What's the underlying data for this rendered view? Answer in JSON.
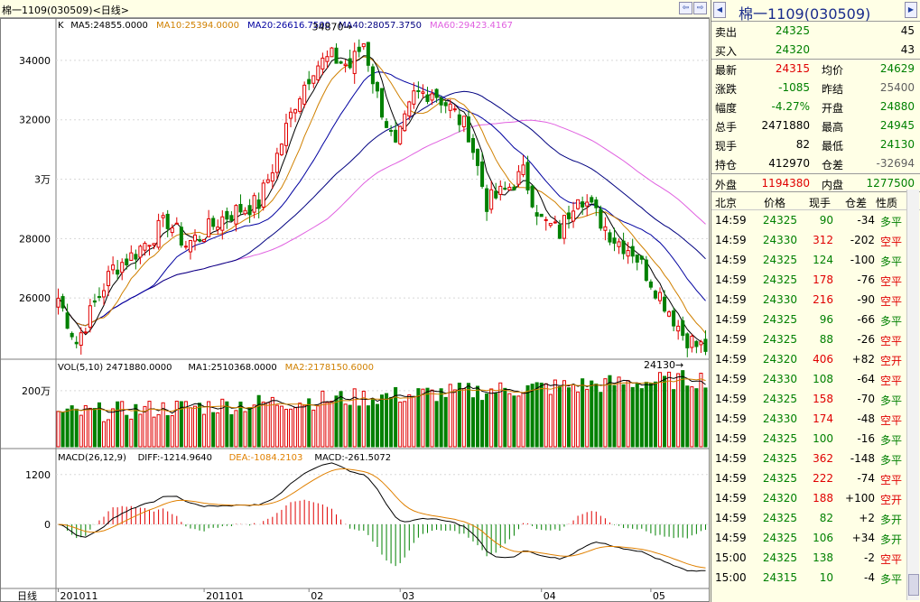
{
  "window": {
    "title": "棉一1109(030509)<日线>"
  },
  "toolbar": {
    "prev_label": "⇦",
    "next_label": "⇨",
    "close_label": "×"
  },
  "chart": {
    "k_legend": [
      "K",
      "MA5:24855.0000",
      "MA10:25394.0000",
      "MA20:26616.7500",
      "MA40:28057.3750",
      "MA60:29423.4167"
    ],
    "vol_legend": [
      "VOL(5,10) 2471880.0000",
      "MA1:2510368.0000",
      "MA2:2178150.6000"
    ],
    "macd_legend": [
      "MACD(26,12,9)",
      "DIFF:-1214.9640",
      "DEA:-1084.2103",
      "MACD:-261.5072"
    ],
    "colors": {
      "up": "#e00000",
      "down": "#008000",
      "ma5": "#000000",
      "ma10": "#d08000",
      "ma20": "#0000a0",
      "ma40": "#000080",
      "ma60": "#e060e0",
      "diff": "#000000",
      "dea": "#e08000"
    },
    "high_label": "34870",
    "low_label": "24130",
    "axis_bottom_label": "日线",
    "price_ticks": [
      {
        "value": 34000,
        "label": "34000"
      },
      {
        "value": 32000,
        "label": "32000"
      },
      {
        "value": 30000,
        "label": "3万"
      },
      {
        "value": 28000,
        "label": "28000"
      },
      {
        "value": 26000,
        "label": "26000"
      }
    ],
    "vol_ticks": [
      {
        "value": 2000000,
        "label": "200万"
      }
    ],
    "macd_ticks": [
      {
        "value": 1200,
        "label": "1200"
      },
      {
        "value": 0,
        "label": "0"
      }
    ],
    "date_ticks": [
      {
        "index": 0,
        "label": "201011"
      },
      {
        "index": 32,
        "label": "201101"
      },
      {
        "index": 55,
        "label": "02"
      },
      {
        "index": 75,
        "label": "03"
      },
      {
        "index": 106,
        "label": "04"
      },
      {
        "index": 130,
        "label": "05"
      }
    ]
  },
  "quote": {
    "name": "棉一1109(030509)",
    "sell": {
      "label": "卖出",
      "price": "24325",
      "qty": "45"
    },
    "buy": {
      "label": "买入",
      "price": "24320",
      "qty": "43"
    },
    "rows": [
      {
        "l1": "最新",
        "v1": "24315",
        "c1": "red",
        "l2": "均价",
        "v2": "24629",
        "c2": "green"
      },
      {
        "l1": "涨跌",
        "v1": "-1085",
        "c1": "green",
        "l2": "昨结",
        "v2": "25400",
        "c2": "gray"
      },
      {
        "l1": "幅度",
        "v1": "-4.27%",
        "c1": "green",
        "l2": "开盘",
        "v2": "24880",
        "c2": "green"
      },
      {
        "l1": "总手",
        "v1": "2471880",
        "c1": "black",
        "l2": "最高",
        "v2": "24945",
        "c2": "green"
      },
      {
        "l1": "现手",
        "v1": "82",
        "c1": "black",
        "l2": "最低",
        "v2": "24130",
        "c2": "green"
      },
      {
        "l1": "持仓",
        "v1": "412970",
        "c1": "black",
        "l2": "仓差",
        "v2": "-32694",
        "c2": "gray"
      }
    ],
    "outer": {
      "label": "外盘",
      "value": "1194380"
    },
    "inner": {
      "label": "内盘",
      "value": "1277500"
    }
  },
  "trades_header": {
    "place": "北京",
    "price": "价格",
    "vol": "现手",
    "oi": "仓差",
    "type": "性质"
  },
  "trades": [
    {
      "time": "14:59",
      "price": "24325",
      "vol": "90",
      "oi": "-34",
      "type": "多平"
    },
    {
      "time": "14:59",
      "price": "24330",
      "vol": "312",
      "oi": "-202",
      "type": "空平"
    },
    {
      "time": "14:59",
      "price": "24325",
      "vol": "124",
      "oi": "-100",
      "type": "多平"
    },
    {
      "time": "14:59",
      "price": "24325",
      "vol": "178",
      "oi": "-76",
      "type": "空平"
    },
    {
      "time": "14:59",
      "price": "24330",
      "vol": "216",
      "oi": "-90",
      "type": "空平"
    },
    {
      "time": "14:59",
      "price": "24325",
      "vol": "96",
      "oi": "-66",
      "type": "多平"
    },
    {
      "time": "14:59",
      "price": "24325",
      "vol": "88",
      "oi": "-26",
      "type": "空平"
    },
    {
      "time": "14:59",
      "price": "24320",
      "vol": "406",
      "oi": "+82",
      "type": "空开"
    },
    {
      "time": "14:59",
      "price": "24330",
      "vol": "108",
      "oi": "-64",
      "type": "空平"
    },
    {
      "time": "14:59",
      "price": "24325",
      "vol": "158",
      "oi": "-70",
      "type": "多平"
    },
    {
      "time": "14:59",
      "price": "24330",
      "vol": "174",
      "oi": "-48",
      "type": "空平"
    },
    {
      "time": "14:59",
      "price": "24325",
      "vol": "100",
      "oi": "-16",
      "type": "多平"
    },
    {
      "time": "14:59",
      "price": "24325",
      "vol": "362",
      "oi": "-148",
      "type": "多平"
    },
    {
      "time": "14:59",
      "price": "24325",
      "vol": "222",
      "oi": "-74",
      "type": "空平"
    },
    {
      "time": "14:59",
      "price": "24320",
      "vol": "188",
      "oi": "+100",
      "type": "空开"
    },
    {
      "time": "14:59",
      "price": "24325",
      "vol": "82",
      "oi": "+2",
      "type": "多开"
    },
    {
      "time": "14:59",
      "price": "24325",
      "vol": "106",
      "oi": "+34",
      "type": "多开"
    },
    {
      "time": "15:00",
      "price": "24325",
      "vol": "138",
      "oi": "-2",
      "type": "空平"
    },
    {
      "time": "15:00",
      "price": "24315",
      "vol": "10",
      "oi": "-4",
      "type": "多平"
    }
  ],
  "chart_data": {
    "type": "candlestick",
    "price_range": [
      24000,
      35000
    ],
    "vol_range": [
      0,
      2800000
    ],
    "macd_range": [
      -1500,
      1500
    ],
    "anchors": [
      [
        0,
        26000
      ],
      [
        4,
        24500
      ],
      [
        8,
        25800
      ],
      [
        12,
        27000
      ],
      [
        16,
        27400
      ],
      [
        20,
        28000
      ],
      [
        24,
        28600
      ],
      [
        28,
        27800
      ],
      [
        32,
        28200
      ],
      [
        36,
        28700
      ],
      [
        40,
        29000
      ],
      [
        44,
        29200
      ],
      [
        48,
        30800
      ],
      [
        52,
        32600
      ],
      [
        56,
        33800
      ],
      [
        60,
        34100
      ],
      [
        64,
        33800
      ],
      [
        67,
        34600
      ],
      [
        70,
        32800
      ],
      [
        74,
        31000
      ],
      [
        78,
        32800
      ],
      [
        82,
        33000
      ],
      [
        86,
        32400
      ],
      [
        90,
        31600
      ],
      [
        94,
        29200
      ],
      [
        98,
        29600
      ],
      [
        102,
        30200
      ],
      [
        106,
        28600
      ],
      [
        110,
        28200
      ],
      [
        114,
        29600
      ],
      [
        118,
        28800
      ],
      [
        122,
        28000
      ],
      [
        126,
        27600
      ],
      [
        130,
        26600
      ],
      [
        134,
        25600
      ],
      [
        137,
        24800
      ],
      [
        140,
        24400
      ],
      [
        142,
        24315
      ]
    ],
    "count": 143
  }
}
